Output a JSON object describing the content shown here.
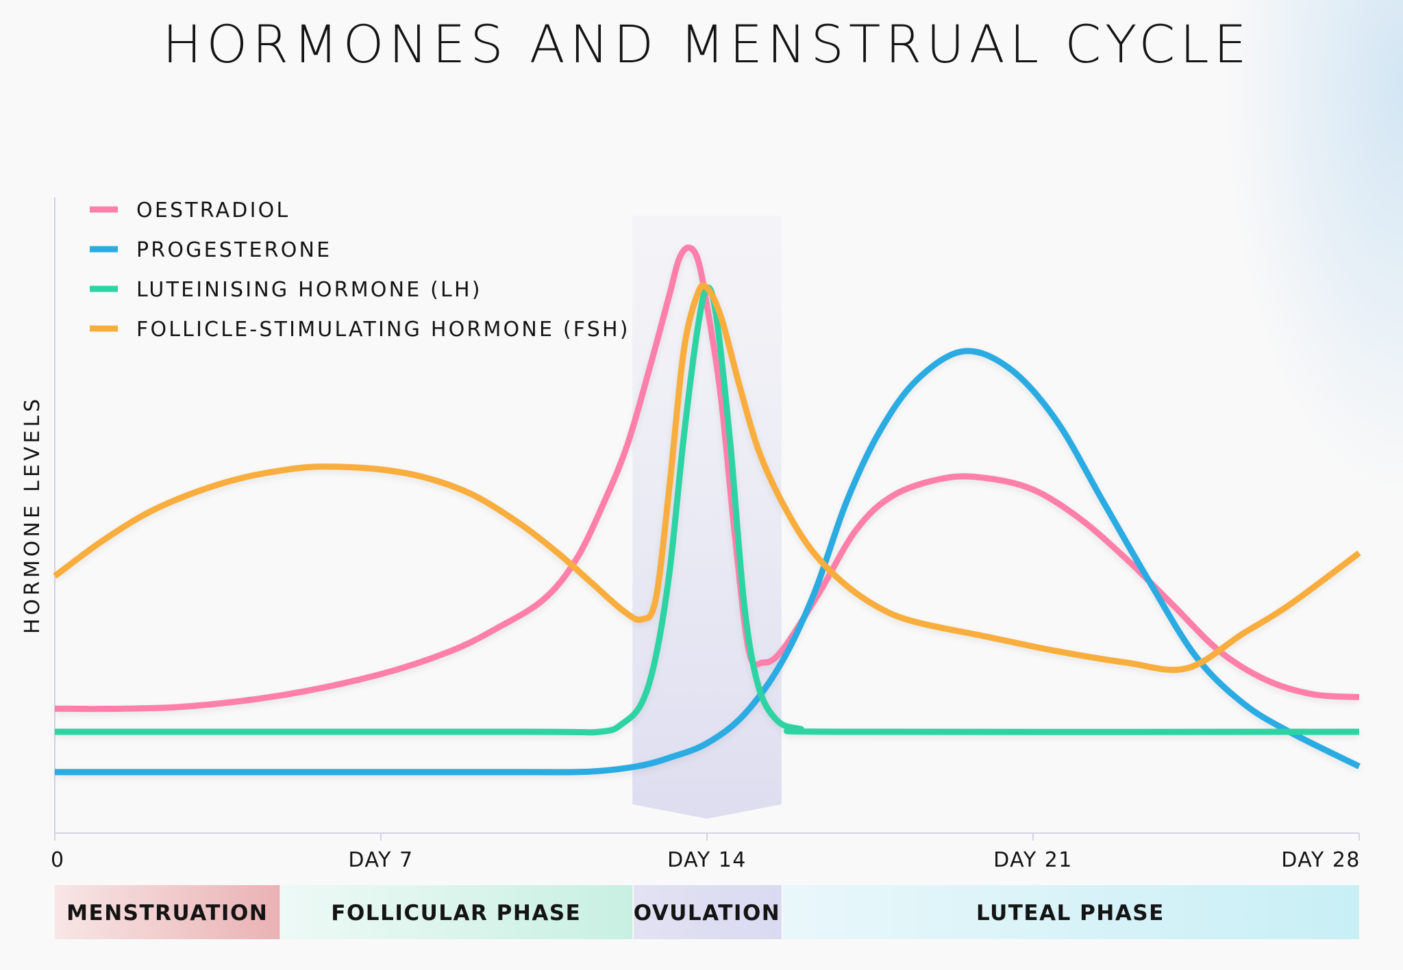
{
  "chart_data": {
    "type": "line",
    "title": "HORMONES AND MENSTRUAL CYCLE",
    "ylabel": "HORMONE LEVELS",
    "xlabel": "",
    "xlim": [
      0,
      28
    ],
    "ylim": [
      0,
      100
    ],
    "x_ticks": [
      {
        "value": 0,
        "label": "0"
      },
      {
        "value": 7,
        "label": "DAY 7"
      },
      {
        "value": 14,
        "label": "DAY 14"
      },
      {
        "value": 21,
        "label": "DAY 21"
      },
      {
        "value": 28,
        "label": "DAY 28"
      }
    ],
    "legend_position": "top-left",
    "ovulation_band": [
      12.4,
      15.6
    ],
    "series": [
      {
        "name": "OESTRADIOL",
        "color": "#ff7fab",
        "points": [
          [
            0,
            16
          ],
          [
            1.5,
            16
          ],
          [
            3,
            16.5
          ],
          [
            5,
            18.5
          ],
          [
            7,
            22
          ],
          [
            8.5,
            26
          ],
          [
            9.5,
            30
          ],
          [
            10.5,
            35
          ],
          [
            11.2,
            42
          ],
          [
            11.8,
            52
          ],
          [
            12.3,
            62
          ],
          [
            12.8,
            76
          ],
          [
            13.2,
            88
          ],
          [
            13.4,
            94
          ],
          [
            13.6,
            96
          ],
          [
            13.8,
            94
          ],
          [
            14,
            86
          ],
          [
            14.3,
            70
          ],
          [
            14.6,
            46
          ],
          [
            14.9,
            26
          ],
          [
            15.2,
            24
          ],
          [
            15.6,
            26
          ],
          [
            16.4,
            36
          ],
          [
            17.2,
            47
          ],
          [
            18,
            53
          ],
          [
            19.1,
            56
          ],
          [
            20,
            56
          ],
          [
            21,
            54
          ],
          [
            22,
            49
          ],
          [
            23,
            42
          ],
          [
            24,
            34
          ],
          [
            25,
            26
          ],
          [
            26,
            21
          ],
          [
            27,
            18.5
          ],
          [
            28,
            18
          ]
        ]
      },
      {
        "name": "PROGESTERONE",
        "color": "#2aabe2",
        "points": [
          [
            0,
            5
          ],
          [
            5,
            5
          ],
          [
            10,
            5
          ],
          [
            11.5,
            5.1
          ],
          [
            12.5,
            6
          ],
          [
            13.2,
            7.5
          ],
          [
            14,
            10
          ],
          [
            14.8,
            15
          ],
          [
            15.6,
            24
          ],
          [
            16.3,
            36
          ],
          [
            17,
            52
          ],
          [
            17.7,
            64
          ],
          [
            18.5,
            73
          ],
          [
            19.5,
            78
          ],
          [
            20.5,
            75
          ],
          [
            21.5,
            66
          ],
          [
            22.5,
            52
          ],
          [
            23.5,
            38
          ],
          [
            24.5,
            25
          ],
          [
            25.5,
            17
          ],
          [
            26.5,
            12
          ],
          [
            28,
            6
          ]
        ]
      },
      {
        "name": "LUTEINISING HORMONE (LH)",
        "color": "#2ed3a3",
        "points": [
          [
            0,
            12
          ],
          [
            10,
            12
          ],
          [
            11.7,
            12
          ],
          [
            12.2,
            13.5
          ],
          [
            12.6,
            17
          ],
          [
            12.9,
            25
          ],
          [
            13.2,
            40
          ],
          [
            13.5,
            63
          ],
          [
            13.8,
            82
          ],
          [
            14,
            89
          ],
          [
            14.2,
            84
          ],
          [
            14.5,
            62
          ],
          [
            14.8,
            34
          ],
          [
            15.1,
            20
          ],
          [
            15.5,
            14
          ],
          [
            16,
            12.5
          ],
          [
            16.8,
            12
          ],
          [
            28,
            12
          ]
        ]
      },
      {
        "name": "FOLLICLE-STIMULATING HORMONE (FSH)",
        "color": "#f9ad3d",
        "points": [
          [
            0,
            39
          ],
          [
            1,
            45
          ],
          [
            2,
            50
          ],
          [
            3,
            53.5
          ],
          [
            4,
            56
          ],
          [
            5,
            57.5
          ],
          [
            5.8,
            58
          ],
          [
            7,
            57.5
          ],
          [
            8,
            56
          ],
          [
            9,
            53
          ],
          [
            10,
            48
          ],
          [
            10.8,
            43
          ],
          [
            11.5,
            38
          ],
          [
            12.2,
            33
          ],
          [
            12.6,
            31.5
          ],
          [
            12.9,
            35
          ],
          [
            13.2,
            55
          ],
          [
            13.5,
            78
          ],
          [
            13.8,
            88
          ],
          [
            14,
            89
          ],
          [
            14.3,
            84
          ],
          [
            14.7,
            72
          ],
          [
            15.1,
            61
          ],
          [
            15.6,
            52
          ],
          [
            16.2,
            44
          ],
          [
            16.9,
            38
          ],
          [
            17.7,
            33.5
          ],
          [
            18.5,
            31
          ],
          [
            20,
            28.5
          ],
          [
            21.5,
            26
          ],
          [
            23,
            24
          ],
          [
            24.3,
            23
          ],
          [
            25.5,
            29
          ],
          [
            26.5,
            34
          ],
          [
            28,
            43
          ]
        ]
      }
    ],
    "phases": [
      {
        "label": "MENSTRUATION",
        "start": 0,
        "end": 4.83
      },
      {
        "label": "FOLLICULAR PHASE",
        "start": 4.83,
        "end": 12.4
      },
      {
        "label": "OVULATION",
        "start": 12.4,
        "end": 15.6
      },
      {
        "label": "LUTEAL PHASE",
        "start": 15.6,
        "end": 28
      }
    ]
  }
}
